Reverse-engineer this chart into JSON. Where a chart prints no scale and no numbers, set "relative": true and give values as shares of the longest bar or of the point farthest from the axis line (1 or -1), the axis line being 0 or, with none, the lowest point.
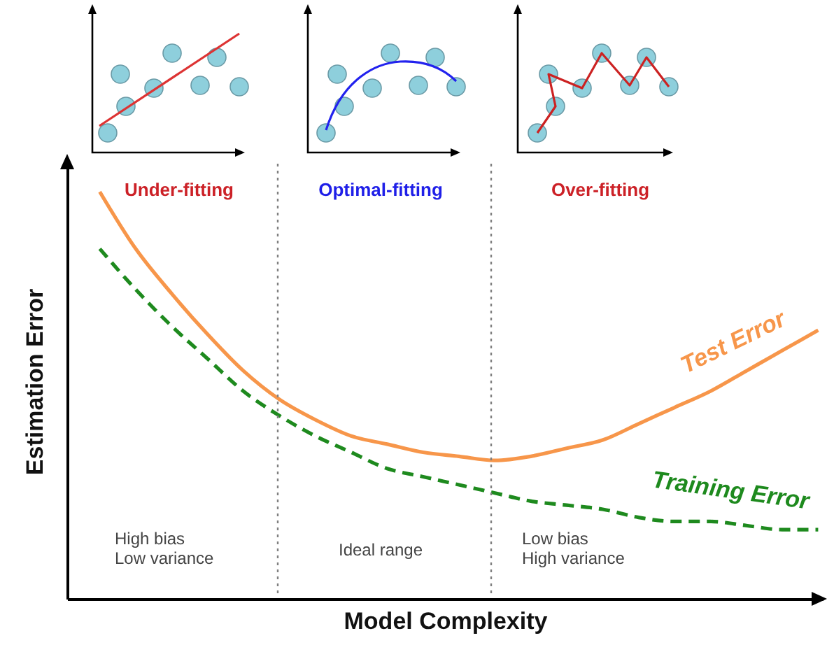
{
  "chart_data": {
    "type": "line",
    "relative": true,
    "xlabel": "Model Complexity",
    "ylabel": "Estimation Error",
    "categories": [
      null,
      null,
      null,
      null,
      null,
      null,
      null,
      null,
      null,
      null,
      null,
      null,
      null,
      null,
      null,
      null,
      null,
      null,
      null,
      null,
      null
    ],
    "series": [
      {
        "name": "Test Error",
        "color": "#f7964a",
        "line_style": "solid",
        "values": [
          1,
          0.86,
          0.75,
          0.65,
          0.56,
          0.49,
          0.44,
          0.4,
          0.38,
          0.36,
          0.35,
          0.34,
          0.35,
          0.37,
          0.39,
          0.43,
          0.47,
          0.51,
          0.56,
          0.61,
          0.66
        ]
      },
      {
        "name": "Training Error",
        "color": "#1e8a1e",
        "line_style": "dashed",
        "values": [
          0.86,
          0.76,
          0.67,
          0.59,
          0.51,
          0.45,
          0.4,
          0.36,
          0.32,
          0.3,
          0.28,
          0.26,
          0.24,
          0.23,
          0.22,
          0.2,
          0.19,
          0.19,
          0.18,
          0.17,
          0.17
        ]
      }
    ],
    "annotations": [
      "Under-fitting",
      "Optimal-fitting",
      "Over-fitting",
      "High bias\nLow variance",
      "Ideal range",
      "Low bias\nHigh variance"
    ]
  }
}
